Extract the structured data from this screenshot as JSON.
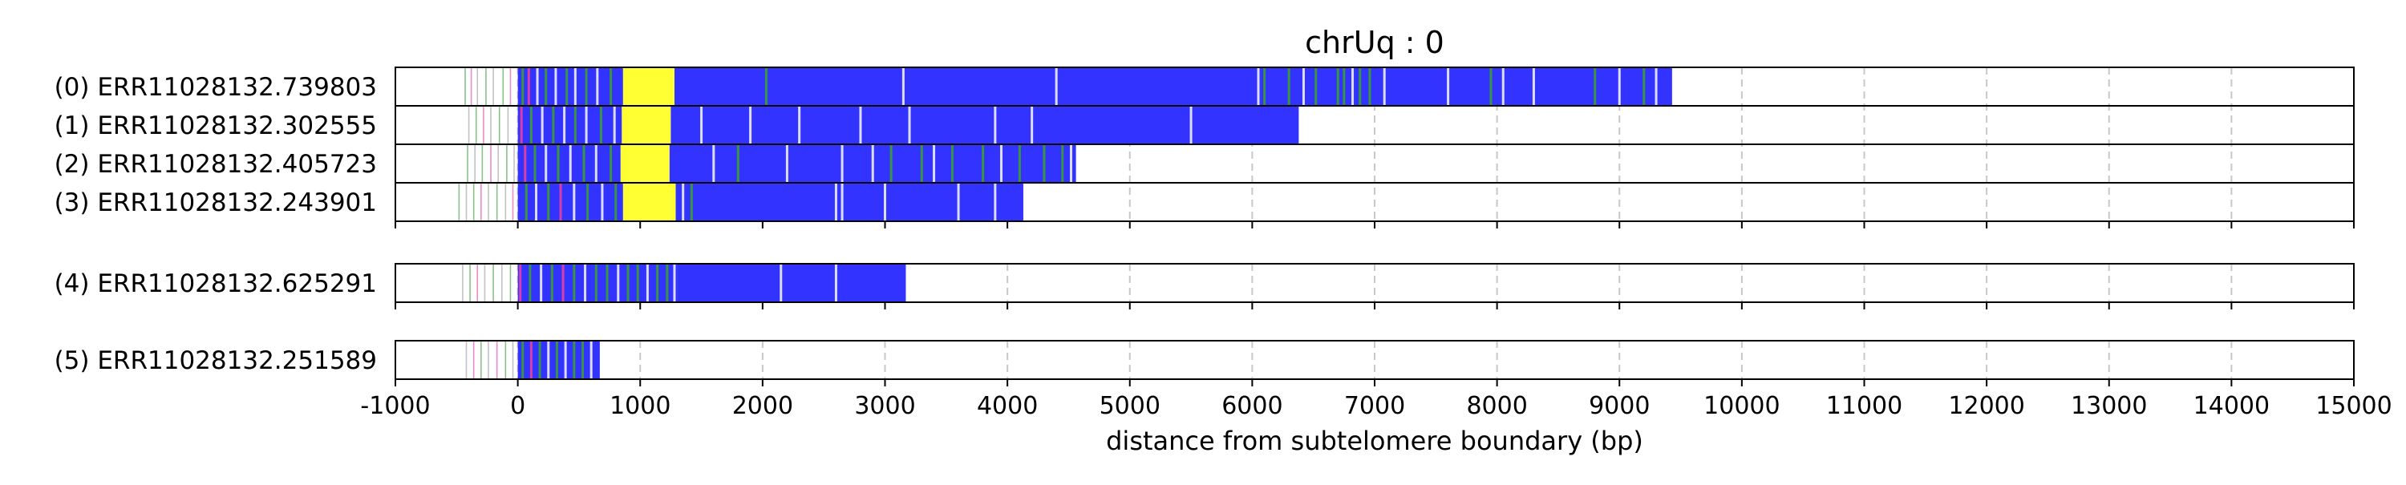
{
  "chart_data": {
    "type": "bar",
    "title": "chrUq : 0",
    "xlabel": "distance from subtelomere boundary (bp)",
    "ylabel": "",
    "xlim": [
      -1000,
      15000
    ],
    "xticks": [
      -1000,
      0,
      1000,
      2000,
      3000,
      4000,
      5000,
      6000,
      7000,
      8000,
      9000,
      10000,
      11000,
      12000,
      13000,
      14000,
      15000
    ],
    "grid": "vertical dashed",
    "colors": {
      "blue": "#3333ff",
      "yellow": "#ffff33",
      "green": "#3a9a3a",
      "pink": "#e040a0",
      "gray": "#999999"
    },
    "read_groups": [
      {
        "group": 1,
        "reads": [
          {
            "label": "(0) ERR11028132.739803",
            "start": -490,
            "end": 9430,
            "segments": [
              {
                "x0": 0,
                "x1": 860,
                "color": "blue"
              },
              {
                "x0": 860,
                "x1": 1280,
                "color": "yellow"
              },
              {
                "x0": 1280,
                "x1": 9430,
                "color": "blue"
              }
            ],
            "lines": [
              {
                "x": -430,
                "color": "green"
              },
              {
                "x": -380,
                "color": "pink"
              },
              {
                "x": -330,
                "color": "gray"
              },
              {
                "x": -260,
                "color": "green"
              },
              {
                "x": -200,
                "color": "gray"
              },
              {
                "x": -120,
                "color": "green"
              },
              {
                "x": -60,
                "color": "pink"
              },
              {
                "x": 40,
                "color": "green"
              },
              {
                "x": 90,
                "color": "pink"
              },
              {
                "x": 160,
                "color": "gray"
              },
              {
                "x": 230,
                "color": "green"
              },
              {
                "x": 310,
                "color": "gray"
              },
              {
                "x": 400,
                "color": "green"
              },
              {
                "x": 470,
                "color": "gray"
              },
              {
                "x": 560,
                "color": "green"
              },
              {
                "x": 650,
                "color": "gray"
              },
              {
                "x": 760,
                "color": "green"
              },
              {
                "x": 2030,
                "color": "green"
              },
              {
                "x": 3150,
                "color": "gray"
              },
              {
                "x": 4400,
                "color": "gray"
              },
              {
                "x": 6050,
                "color": "gray"
              },
              {
                "x": 6100,
                "color": "green"
              },
              {
                "x": 6300,
                "color": "green"
              },
              {
                "x": 6420,
                "color": "gray"
              },
              {
                "x": 6520,
                "color": "green"
              },
              {
                "x": 6700,
                "color": "green"
              },
              {
                "x": 6750,
                "color": "green"
              },
              {
                "x": 6820,
                "color": "gray"
              },
              {
                "x": 6880,
                "color": "green"
              },
              {
                "x": 6960,
                "color": "green"
              },
              {
                "x": 7080,
                "color": "gray"
              },
              {
                "x": 7600,
                "color": "gray"
              },
              {
                "x": 7950,
                "color": "green"
              },
              {
                "x": 8050,
                "color": "gray"
              },
              {
                "x": 8300,
                "color": "gray"
              },
              {
                "x": 8800,
                "color": "green"
              },
              {
                "x": 9000,
                "color": "gray"
              },
              {
                "x": 9200,
                "color": "green"
              },
              {
                "x": 9300,
                "color": "gray"
              }
            ]
          },
          {
            "label": "(1) ERR11028132.302555",
            "start": -440,
            "end": 6380,
            "segments": [
              {
                "x0": 0,
                "x1": 850,
                "color": "blue"
              },
              {
                "x0": 850,
                "x1": 1250,
                "color": "yellow"
              },
              {
                "x0": 1250,
                "x1": 6380,
                "color": "blue"
              }
            ],
            "lines": [
              {
                "x": -400,
                "color": "gray"
              },
              {
                "x": -340,
                "color": "green"
              },
              {
                "x": -280,
                "color": "pink"
              },
              {
                "x": -220,
                "color": "gray"
              },
              {
                "x": -150,
                "color": "green"
              },
              {
                "x": -80,
                "color": "gray"
              },
              {
                "x": 30,
                "color": "pink"
              },
              {
                "x": 110,
                "color": "green"
              },
              {
                "x": 200,
                "color": "gray"
              },
              {
                "x": 290,
                "color": "green"
              },
              {
                "x": 380,
                "color": "gray"
              },
              {
                "x": 470,
                "color": "green"
              },
              {
                "x": 560,
                "color": "gray"
              },
              {
                "x": 680,
                "color": "green"
              },
              {
                "x": 790,
                "color": "gray"
              },
              {
                "x": 1500,
                "color": "gray"
              },
              {
                "x": 1900,
                "color": "gray"
              },
              {
                "x": 2300,
                "color": "gray"
              },
              {
                "x": 2800,
                "color": "gray"
              },
              {
                "x": 3200,
                "color": "gray"
              },
              {
                "x": 3900,
                "color": "gray"
              },
              {
                "x": 4200,
                "color": "gray"
              },
              {
                "x": 5500,
                "color": "gray"
              }
            ]
          },
          {
            "label": "(2) ERR11028132.405723",
            "start": -450,
            "end": 4560,
            "segments": [
              {
                "x0": 0,
                "x1": 840,
                "color": "blue"
              },
              {
                "x0": 840,
                "x1": 1240,
                "color": "yellow"
              },
              {
                "x0": 1240,
                "x1": 4560,
                "color": "blue"
              }
            ],
            "lines": [
              {
                "x": -410,
                "color": "green"
              },
              {
                "x": -350,
                "color": "gray"
              },
              {
                "x": -290,
                "color": "green"
              },
              {
                "x": -220,
                "color": "pink"
              },
              {
                "x": -160,
                "color": "gray"
              },
              {
                "x": -90,
                "color": "green"
              },
              {
                "x": -30,
                "color": "gray"
              },
              {
                "x": 60,
                "color": "pink"
              },
              {
                "x": 140,
                "color": "green"
              },
              {
                "x": 230,
                "color": "gray"
              },
              {
                "x": 330,
                "color": "green"
              },
              {
                "x": 430,
                "color": "gray"
              },
              {
                "x": 540,
                "color": "green"
              },
              {
                "x": 640,
                "color": "gray"
              },
              {
                "x": 760,
                "color": "green"
              },
              {
                "x": 1600,
                "color": "gray"
              },
              {
                "x": 1800,
                "color": "green"
              },
              {
                "x": 2200,
                "color": "gray"
              },
              {
                "x": 2650,
                "color": "gray"
              },
              {
                "x": 2900,
                "color": "gray"
              },
              {
                "x": 3050,
                "color": "green"
              },
              {
                "x": 3300,
                "color": "green"
              },
              {
                "x": 3400,
                "color": "gray"
              },
              {
                "x": 3550,
                "color": "green"
              },
              {
                "x": 3800,
                "color": "green"
              },
              {
                "x": 3950,
                "color": "gray"
              },
              {
                "x": 4100,
                "color": "green"
              },
              {
                "x": 4300,
                "color": "green"
              },
              {
                "x": 4450,
                "color": "green"
              },
              {
                "x": 4520,
                "color": "gray"
              }
            ]
          },
          {
            "label": "(3) ERR11028132.243901",
            "start": -510,
            "end": 4130,
            "segments": [
              {
                "x0": 0,
                "x1": 860,
                "color": "blue"
              },
              {
                "x0": 860,
                "x1": 1290,
                "color": "yellow"
              },
              {
                "x0": 1290,
                "x1": 4130,
                "color": "blue"
              }
            ],
            "lines": [
              {
                "x": -480,
                "color": "green"
              },
              {
                "x": -420,
                "color": "gray"
              },
              {
                "x": -360,
                "color": "green"
              },
              {
                "x": -300,
                "color": "pink"
              },
              {
                "x": -240,
                "color": "gray"
              },
              {
                "x": -170,
                "color": "green"
              },
              {
                "x": -100,
                "color": "gray"
              },
              {
                "x": -40,
                "color": "pink"
              },
              {
                "x": 70,
                "color": "green"
              },
              {
                "x": 150,
                "color": "gray"
              },
              {
                "x": 250,
                "color": "green"
              },
              {
                "x": 350,
                "color": "pink"
              },
              {
                "x": 460,
                "color": "gray"
              },
              {
                "x": 570,
                "color": "green"
              },
              {
                "x": 690,
                "color": "gray"
              },
              {
                "x": 800,
                "color": "green"
              },
              {
                "x": 1350,
                "color": "gray"
              },
              {
                "x": 1420,
                "color": "green"
              },
              {
                "x": 2600,
                "color": "gray"
              },
              {
                "x": 2650,
                "color": "gray"
              },
              {
                "x": 3000,
                "color": "gray"
              },
              {
                "x": 3600,
                "color": "gray"
              },
              {
                "x": 3900,
                "color": "gray"
              }
            ]
          }
        ]
      },
      {
        "group": 2,
        "reads": [
          {
            "label": "(4) ERR11028132.625291",
            "start": -480,
            "end": 3170,
            "segments": [
              {
                "x0": 0,
                "x1": 1300,
                "color": "blue"
              },
              {
                "x0": 1300,
                "x1": 3170,
                "color": "blue"
              }
            ],
            "lines": [
              {
                "x": -450,
                "color": "gray"
              },
              {
                "x": -390,
                "color": "green"
              },
              {
                "x": -330,
                "color": "pink"
              },
              {
                "x": -270,
                "color": "gray"
              },
              {
                "x": -200,
                "color": "green"
              },
              {
                "x": -130,
                "color": "gray"
              },
              {
                "x": -60,
                "color": "green"
              },
              {
                "x": 20,
                "color": "pink"
              },
              {
                "x": 100,
                "color": "green"
              },
              {
                "x": 190,
                "color": "gray"
              },
              {
                "x": 280,
                "color": "green"
              },
              {
                "x": 370,
                "color": "pink"
              },
              {
                "x": 460,
                "color": "green"
              },
              {
                "x": 550,
                "color": "gray"
              },
              {
                "x": 640,
                "color": "green"
              },
              {
                "x": 730,
                "color": "green"
              },
              {
                "x": 820,
                "color": "gray"
              },
              {
                "x": 900,
                "color": "green"
              },
              {
                "x": 980,
                "color": "green"
              },
              {
                "x": 1060,
                "color": "gray"
              },
              {
                "x": 1140,
                "color": "green"
              },
              {
                "x": 1220,
                "color": "green"
              },
              {
                "x": 1280,
                "color": "gray"
              },
              {
                "x": 2150,
                "color": "gray"
              },
              {
                "x": 2600,
                "color": "gray"
              }
            ]
          }
        ]
      },
      {
        "group": 3,
        "reads": [
          {
            "label": "(5) ERR11028132.251589",
            "start": -450,
            "end": 670,
            "segments": [
              {
                "x0": 0,
                "x1": 670,
                "color": "blue"
              }
            ],
            "lines": [
              {
                "x": -420,
                "color": "gray"
              },
              {
                "x": -360,
                "color": "pink"
              },
              {
                "x": -300,
                "color": "green"
              },
              {
                "x": -240,
                "color": "gray"
              },
              {
                "x": -170,
                "color": "pink"
              },
              {
                "x": -100,
                "color": "green"
              },
              {
                "x": -40,
                "color": "gray"
              },
              {
                "x": 40,
                "color": "green"
              },
              {
                "x": 110,
                "color": "pink"
              },
              {
                "x": 180,
                "color": "green"
              },
              {
                "x": 250,
                "color": "gray"
              },
              {
                "x": 320,
                "color": "green"
              },
              {
                "x": 390,
                "color": "gray"
              },
              {
                "x": 460,
                "color": "green"
              },
              {
                "x": 530,
                "color": "green"
              },
              {
                "x": 600,
                "color": "gray"
              }
            ]
          }
        ]
      }
    ]
  }
}
